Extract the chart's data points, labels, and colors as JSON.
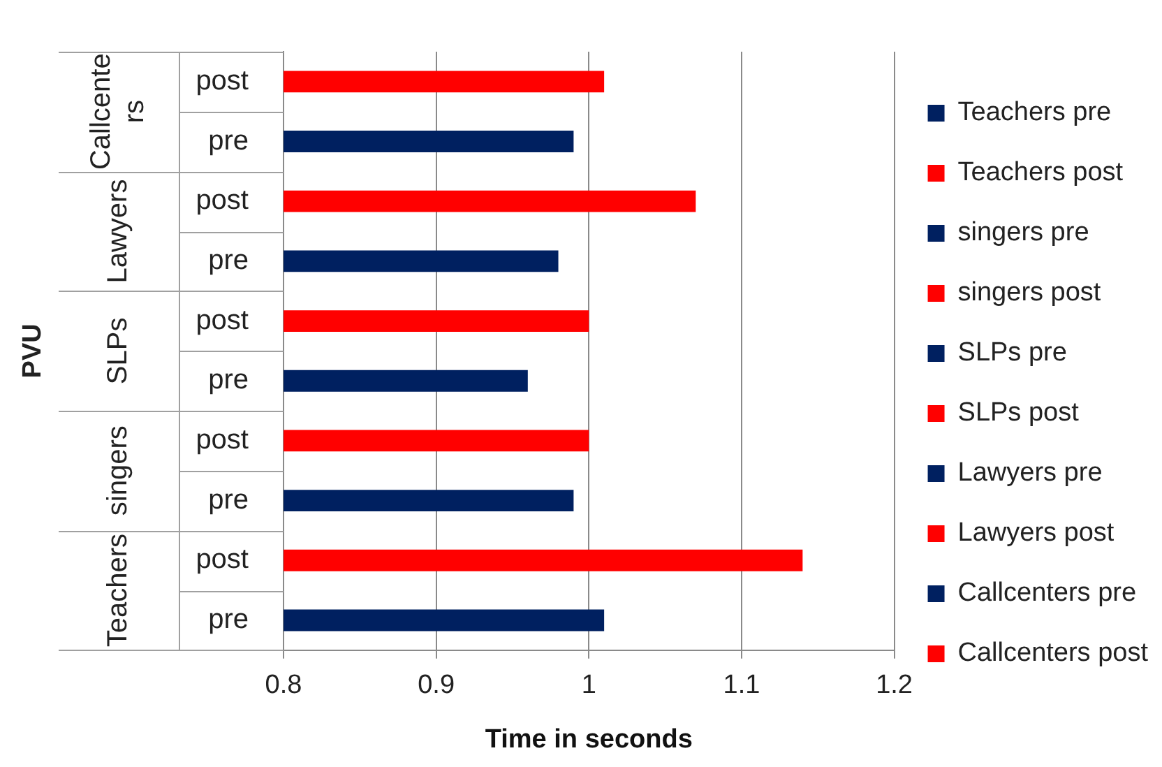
{
  "chart_data": {
    "type": "bar",
    "orientation": "horizontal",
    "xlabel": "Time in seconds",
    "categories": [
      "post",
      "pre",
      "post",
      "pre",
      "post",
      "pre",
      "post",
      "pre",
      "post",
      "pre"
    ],
    "annotations": [
      "Callcenters",
      "Lawyers",
      "SLPs",
      "singers",
      "Teachers",
      "PVU"
    ],
    "series": [
      {
        "name": "Teachers pre",
        "color": "#002060",
        "values": [
          null,
          null,
          null,
          null,
          null,
          null,
          null,
          null,
          null,
          1.01
        ]
      },
      {
        "name": "Teachers post",
        "color": "#ff0000",
        "values": [
          null,
          null,
          null,
          null,
          null,
          null,
          null,
          null,
          1.14,
          null
        ]
      },
      {
        "name": "singers pre",
        "color": "#002060",
        "values": [
          null,
          null,
          null,
          null,
          null,
          null,
          null,
          0.99,
          null,
          null
        ]
      },
      {
        "name": "singers post",
        "color": "#ff0000",
        "values": [
          null,
          null,
          null,
          null,
          null,
          null,
          1.0,
          null,
          null,
          null
        ]
      },
      {
        "name": "SLPs pre",
        "color": "#002060",
        "values": [
          null,
          null,
          null,
          null,
          null,
          0.96,
          null,
          null,
          null,
          null
        ]
      },
      {
        "name": "SLPs post",
        "color": "#ff0000",
        "values": [
          null,
          null,
          null,
          null,
          1.0,
          null,
          null,
          null,
          null,
          null
        ]
      },
      {
        "name": "Lawyers pre",
        "color": "#002060",
        "values": [
          null,
          null,
          null,
          0.98,
          null,
          null,
          null,
          null,
          null,
          null
        ]
      },
      {
        "name": "Lawyers post",
        "color": "#ff0000",
        "values": [
          null,
          null,
          1.07,
          null,
          null,
          null,
          null,
          null,
          null,
          null
        ]
      },
      {
        "name": "Callcenters pre",
        "color": "#002060",
        "values": [
          null,
          0.99,
          null,
          null,
          null,
          null,
          null,
          null,
          null,
          null
        ]
      },
      {
        "name": "Callcenters post",
        "color": "#ff0000",
        "values": [
          1.01,
          null,
          null,
          null,
          null,
          null,
          null,
          null,
          null,
          null
        ]
      }
    ],
    "xlim": [
      0.8,
      1.2
    ],
    "xticks": [
      0.8,
      0.9,
      1,
      1.1,
      1.2
    ],
    "grid": "x",
    "legend": "right"
  }
}
